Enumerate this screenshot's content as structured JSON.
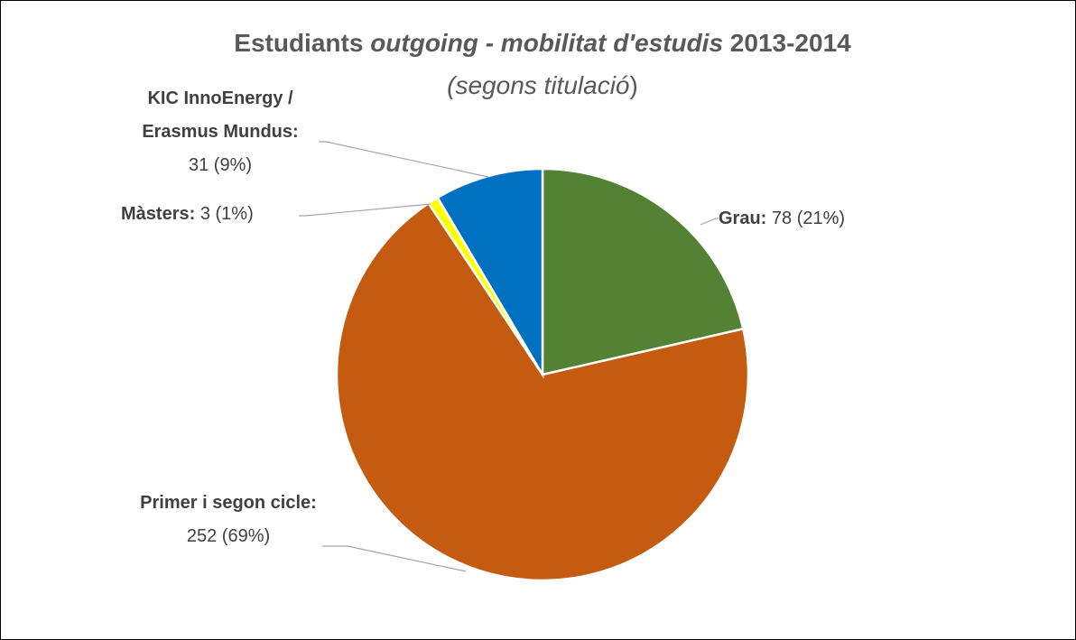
{
  "chart_data": {
    "type": "pie",
    "title": [
      "Estudiants ",
      "outgoing - mobilitat d'estudis",
      " 2013-2014"
    ],
    "subtitle": [
      "(segons titulació",
      ")"
    ],
    "categories": [
      "Grau:",
      "Primer i segon cicle:",
      "Màsters:",
      "KIC InnoEnergy / Erasmus Mundus:"
    ],
    "values": [
      78,
      252,
      3,
      31
    ],
    "value_labels": [
      "78 (21%)",
      "252 (69%)",
      "3 (1%)",
      "31 (9%)"
    ],
    "colors": [
      "#548235",
      "#c55a11",
      "#ffff00",
      "#0070c0"
    ]
  }
}
